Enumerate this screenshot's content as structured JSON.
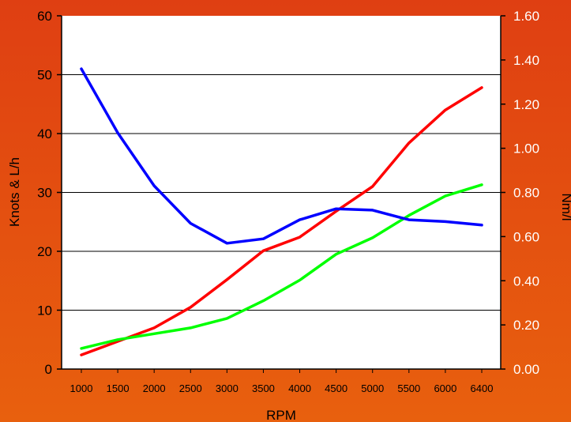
{
  "colors": {
    "bg_top": "#df3f12",
    "bg_bottom": "#e8600e",
    "plot_bg": "#ffffff",
    "grid": "#000000",
    "axis_text": "#000000",
    "right_axis_text": "#ffffff"
  },
  "chart_data": {
    "type": "line",
    "xlabel": "RPM",
    "ylabel_left": "Knots & L/h",
    "ylabel_right": "Nm/l",
    "categories": [
      "1000",
      "1500",
      "2000",
      "2500",
      "3000",
      "3500",
      "4000",
      "4500",
      "5000",
      "5500",
      "6000",
      "6400"
    ],
    "ylim_left": [
      0,
      60
    ],
    "ylim_right": [
      0,
      1.6
    ],
    "yticks_left": [
      "0",
      "10",
      "20",
      "30",
      "40",
      "50",
      "60"
    ],
    "yticks_right": [
      "0.00",
      "0.20",
      "0.40",
      "0.60",
      "0.80",
      "1.00",
      "1.20",
      "1.40",
      "1.60"
    ],
    "grid": true,
    "series": [
      {
        "color": "#ff0000",
        "axis": "left",
        "values": [
          2.4,
          4.7,
          7.0,
          10.5,
          15.2,
          20.1,
          22.4,
          26.8,
          31.0,
          38.4,
          44.0,
          47.8
        ]
      },
      {
        "color": "#00ff00",
        "axis": "left",
        "values": [
          3.5,
          5.0,
          6.0,
          7.0,
          8.6,
          11.6,
          15.1,
          19.5,
          22.3,
          26.1,
          29.4,
          31.3
        ]
      },
      {
        "color": "#0000ff",
        "axis": "right",
        "values": [
          1.36,
          1.07,
          0.83,
          0.66,
          0.57,
          0.59,
          0.676,
          0.726,
          0.72,
          0.676,
          0.668,
          0.652
        ]
      }
    ]
  }
}
